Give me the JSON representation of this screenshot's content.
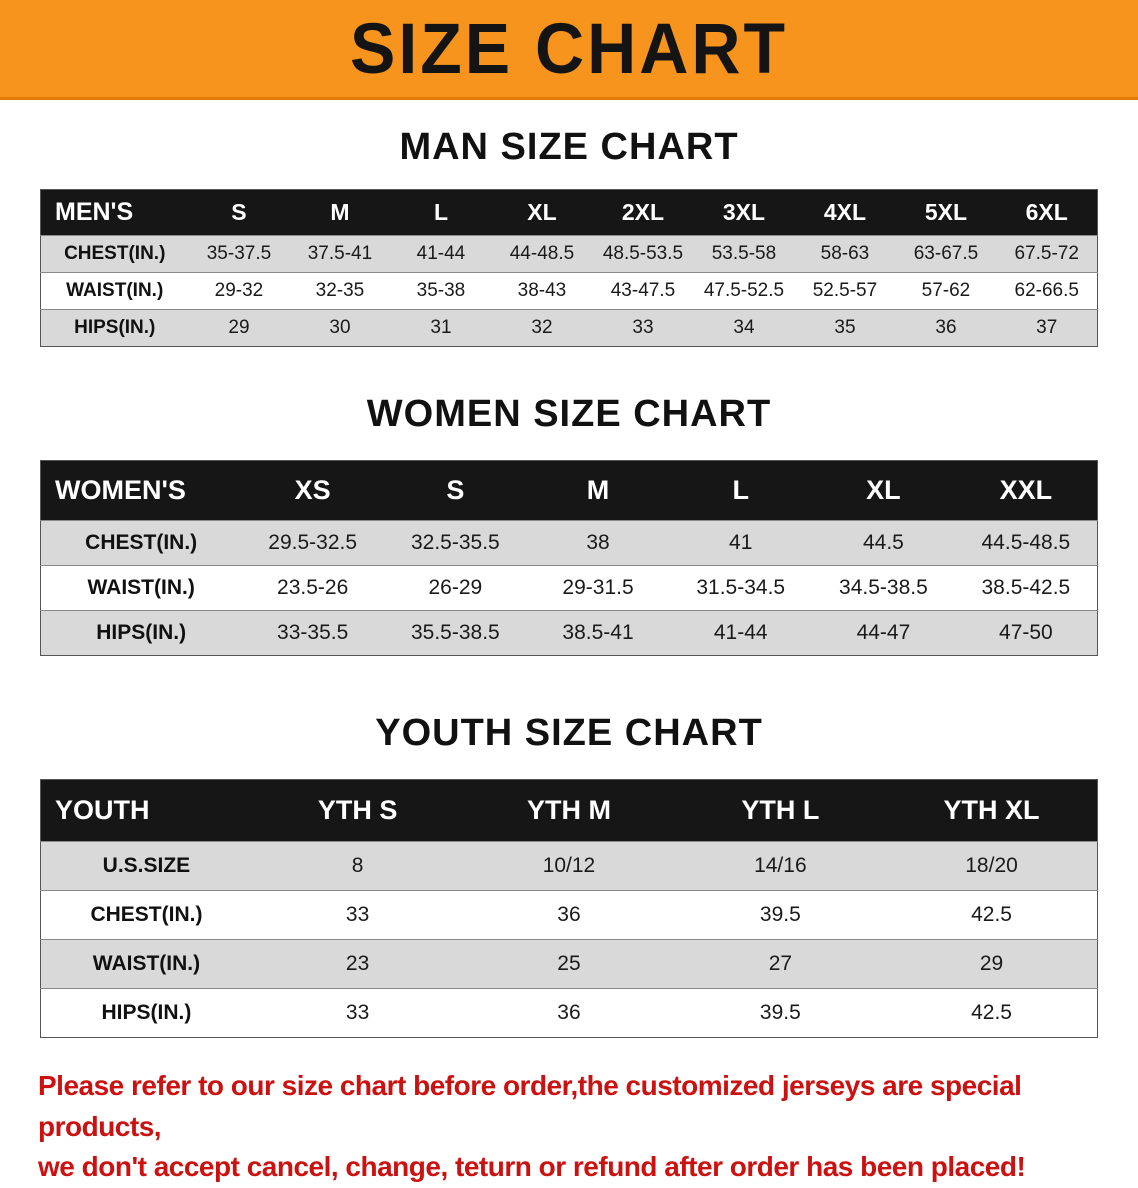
{
  "banner": {
    "title": "SIZE CHART"
  },
  "colors": {
    "banner_orange": "#f7941d",
    "table_header_black": "#161616",
    "row_stripe_gray": "#d9d9d9",
    "footer_red": "#cc1111"
  },
  "sections": [
    {
      "heading": "MAN SIZE CHART",
      "table": {
        "header": [
          "MEN'S",
          "S",
          "M",
          "L",
          "XL",
          "2XL",
          "3XL",
          "4XL",
          "5XL",
          "6XL"
        ],
        "rows": [
          [
            "CHEST(IN.)",
            "35-37.5",
            "37.5-41",
            "41-44",
            "44-48.5",
            "48.5-53.5",
            "53.5-58",
            "58-63",
            "63-67.5",
            "67.5-72"
          ],
          [
            "WAIST(IN.)",
            "29-32",
            "32-35",
            "35-38",
            "38-43",
            "43-47.5",
            "47.5-52.5",
            "52.5-57",
            "57-62",
            "62-66.5"
          ],
          [
            "HIPS(IN.)",
            "29",
            "30",
            "31",
            "32",
            "33",
            "34",
            "35",
            "36",
            "37"
          ]
        ]
      }
    },
    {
      "heading": "WOMEN SIZE CHART",
      "table": {
        "header": [
          "WOMEN'S",
          "XS",
          "S",
          "M",
          "L",
          "XL",
          "XXL"
        ],
        "rows": [
          [
            "CHEST(IN.)",
            "29.5-32.5",
            "32.5-35.5",
            "38",
            "41",
            "44.5",
            "44.5-48.5"
          ],
          [
            "WAIST(IN.)",
            "23.5-26",
            "26-29",
            "29-31.5",
            "31.5-34.5",
            "34.5-38.5",
            "38.5-42.5"
          ],
          [
            "HIPS(IN.)",
            "33-35.5",
            "35.5-38.5",
            "38.5-41",
            "41-44",
            "44-47",
            "47-50"
          ]
        ]
      }
    },
    {
      "heading": "YOUTH SIZE CHART",
      "table": {
        "header": [
          "YOUTH",
          "YTH S",
          "YTH M",
          "YTH L",
          "YTH XL"
        ],
        "rows": [
          [
            "U.S.SIZE",
            "8",
            "10/12",
            "14/16",
            "18/20"
          ],
          [
            "CHEST(IN.)",
            "33",
            "36",
            "39.5",
            "42.5"
          ],
          [
            "WAIST(IN.)",
            "23",
            "25",
            "27",
            "29"
          ],
          [
            "HIPS(IN.)",
            "33",
            "36",
            "39.5",
            "42.5"
          ]
        ]
      }
    }
  ],
  "footer": {
    "line1": "Please refer to our size chart before order,the customized jerseys are special products,",
    "line2": "we don't accept cancel, change, teturn or refund after order has been placed!"
  }
}
